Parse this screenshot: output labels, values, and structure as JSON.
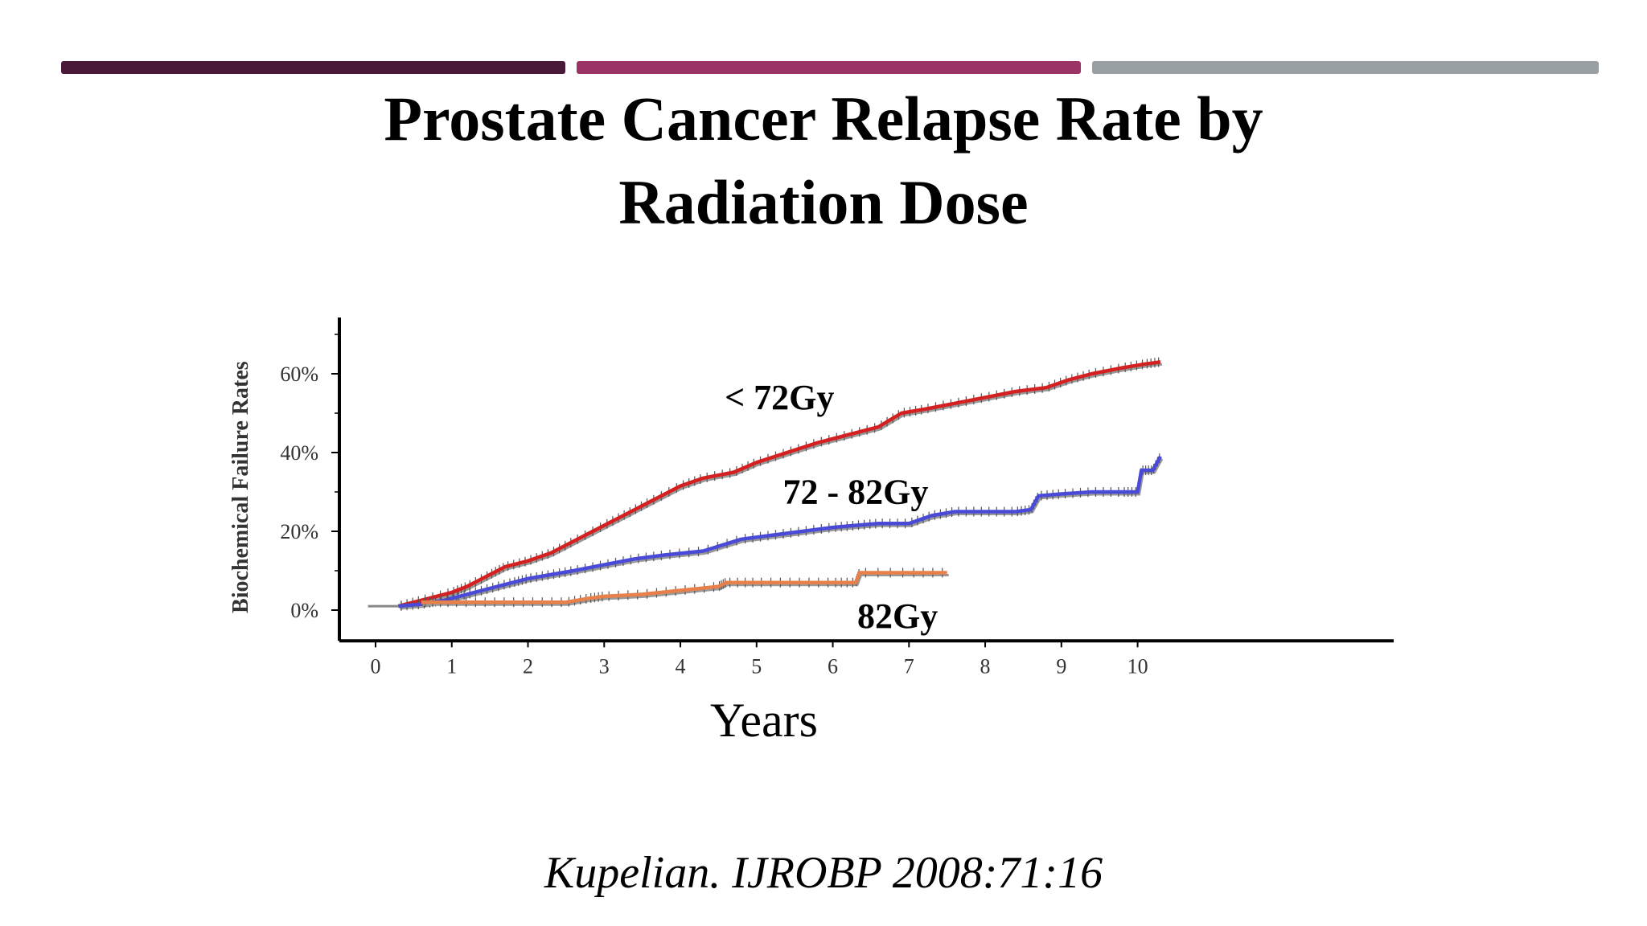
{
  "slide": {
    "title_line1": "Prostate Cancer Relapse Rate by",
    "title_line2": "Radiation Dose",
    "citation": "Kupelian. IJROBP 2008:71:16",
    "accent_colors": [
      "#4a1838",
      "#9b3366",
      "#98a0a3"
    ]
  },
  "chart_data": {
    "type": "line",
    "title": "",
    "xlabel": "Years",
    "ylabel": "Biochemical Failure Rates",
    "xlim": [
      0,
      10.5
    ],
    "ylim": [
      -0.07,
      0.71
    ],
    "x_ticks": [
      0,
      1,
      2,
      3,
      4,
      5,
      6,
      7,
      8,
      9,
      10
    ],
    "x_tick_labels": [
      "0",
      "1",
      "2",
      "3",
      "4",
      "5",
      "6",
      "7",
      "8",
      "9",
      "10"
    ],
    "y_ticks": [
      0,
      0.2,
      0.4,
      0.6
    ],
    "y_tick_labels": [
      "0%",
      "20%",
      "40%",
      "60%"
    ],
    "grid": false,
    "legend": "none",
    "series": [
      {
        "name": "< 72Gy",
        "color": "#d42020",
        "x": [
          0.3,
          0.6,
          1.0,
          1.2,
          1.5,
          1.7,
          2.0,
          2.3,
          2.6,
          3.0,
          3.3,
          3.6,
          4.0,
          4.3,
          4.7,
          5.0,
          5.4,
          5.8,
          6.2,
          6.6,
          6.9,
          7.2,
          7.6,
          8.0,
          8.4,
          8.8,
          9.1,
          9.4,
          9.8,
          10.1,
          10.3
        ],
        "y": [
          0.01,
          0.025,
          0.045,
          0.06,
          0.09,
          0.11,
          0.125,
          0.145,
          0.175,
          0.215,
          0.245,
          0.275,
          0.315,
          0.335,
          0.35,
          0.375,
          0.4,
          0.425,
          0.445,
          0.465,
          0.5,
          0.51,
          0.525,
          0.54,
          0.555,
          0.565,
          0.585,
          0.6,
          0.615,
          0.625,
          0.63
        ]
      },
      {
        "name": "72 - 82Gy",
        "color": "#4a4ad8",
        "x": [
          0.3,
          0.6,
          0.9,
          1.2,
          1.5,
          1.8,
          2.0,
          2.3,
          2.6,
          3.0,
          3.4,
          3.8,
          4.3,
          4.8,
          5.2,
          5.6,
          6.0,
          6.3,
          6.6,
          7.0,
          7.3,
          7.6,
          8.0,
          8.4,
          8.6,
          8.7,
          9.0,
          9.4,
          9.8,
          10.0,
          10.05,
          10.2,
          10.3
        ],
        "y": [
          0.01,
          0.015,
          0.025,
          0.04,
          0.055,
          0.07,
          0.08,
          0.09,
          0.1,
          0.115,
          0.13,
          0.14,
          0.15,
          0.18,
          0.19,
          0.2,
          0.21,
          0.215,
          0.22,
          0.22,
          0.24,
          0.25,
          0.25,
          0.25,
          0.255,
          0.29,
          0.295,
          0.3,
          0.3,
          0.3,
          0.355,
          0.355,
          0.39
        ]
      },
      {
        "name": "82Gy",
        "color": "#e8804a",
        "x": [
          0.6,
          1.0,
          1.5,
          2.0,
          2.5,
          2.8,
          3.0,
          3.5,
          4.0,
          4.5,
          4.6,
          5.0,
          5.5,
          6.0,
          6.3,
          6.35,
          7.0,
          7.5
        ],
        "y": [
          0.02,
          0.02,
          0.02,
          0.02,
          0.02,
          0.03,
          0.035,
          0.04,
          0.05,
          0.06,
          0.07,
          0.07,
          0.07,
          0.07,
          0.07,
          0.095,
          0.095,
          0.095
        ]
      }
    ],
    "annotations": [
      {
        "text": "< 72Gy",
        "x": 5.3,
        "y": 0.51
      },
      {
        "text": "72 - 82Gy",
        "x": 6.3,
        "y": 0.27
      },
      {
        "text": "82Gy",
        "x": 6.85,
        "y": -0.045
      }
    ]
  }
}
